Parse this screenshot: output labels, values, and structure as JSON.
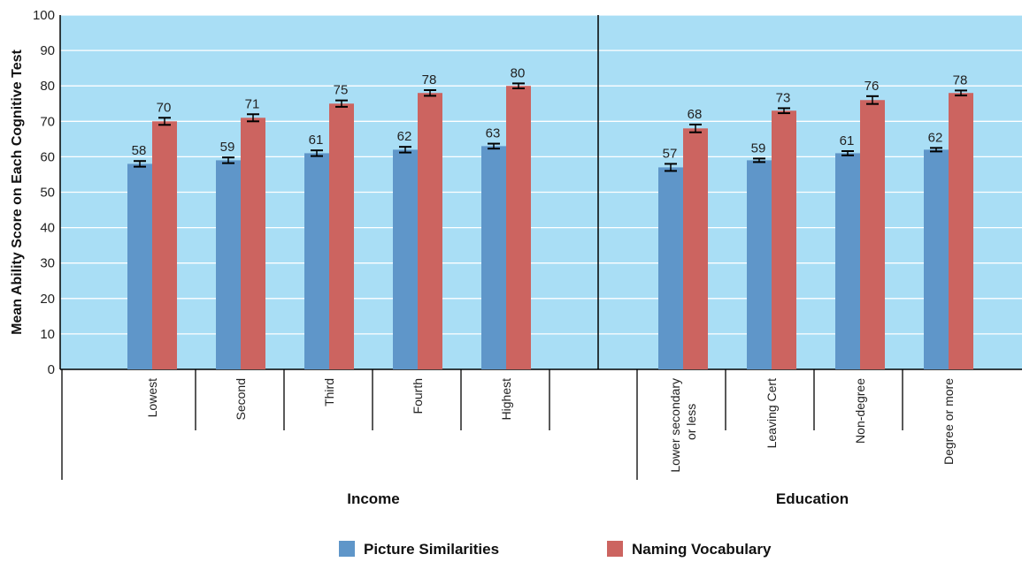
{
  "chart_data": {
    "type": "bar",
    "ylabel": "Mean Ability Score on Each Cognitive Test",
    "ylim": [
      0,
      100
    ],
    "yticks": [
      0,
      10,
      20,
      30,
      40,
      50,
      60,
      70,
      80,
      90,
      100
    ],
    "grid": true,
    "legend_position": "bottom",
    "colors": {
      "plot_bg": "#a9def5",
      "grid": "#ffffff",
      "series1": "#5f96c9",
      "series2": "#cc6460"
    },
    "groups": [
      {
        "name": "Income",
        "categories": [
          "Lowest",
          "Second",
          "Third",
          "Fourth",
          "Highest"
        ],
        "series": [
          {
            "name": "Picture Similarities",
            "values": [
              58,
              59,
              61,
              62,
              63
            ],
            "err": [
              0.8,
              0.8,
              0.8,
              0.8,
              0.7
            ]
          },
          {
            "name": "Naming Vocabulary",
            "values": [
              70,
              71,
              75,
              78,
              80
            ],
            "err": [
              1.0,
              1.0,
              0.9,
              0.8,
              0.7
            ]
          }
        ]
      },
      {
        "name": "Education",
        "categories": [
          "Lower secondary or less",
          "Leaving Cert",
          "Non-degree",
          "Degree or more"
        ],
        "series": [
          {
            "name": "Picture Similarities",
            "values": [
              57,
              59,
              61,
              62
            ],
            "err": [
              1.0,
              0.5,
              0.6,
              0.5
            ]
          },
          {
            "name": "Naming Vocabulary",
            "values": [
              68,
              73,
              76,
              78
            ],
            "err": [
              1.1,
              0.7,
              1.1,
              0.7
            ]
          }
        ]
      }
    ],
    "legend": [
      "Picture Similarities",
      "Naming Vocabulary"
    ]
  }
}
